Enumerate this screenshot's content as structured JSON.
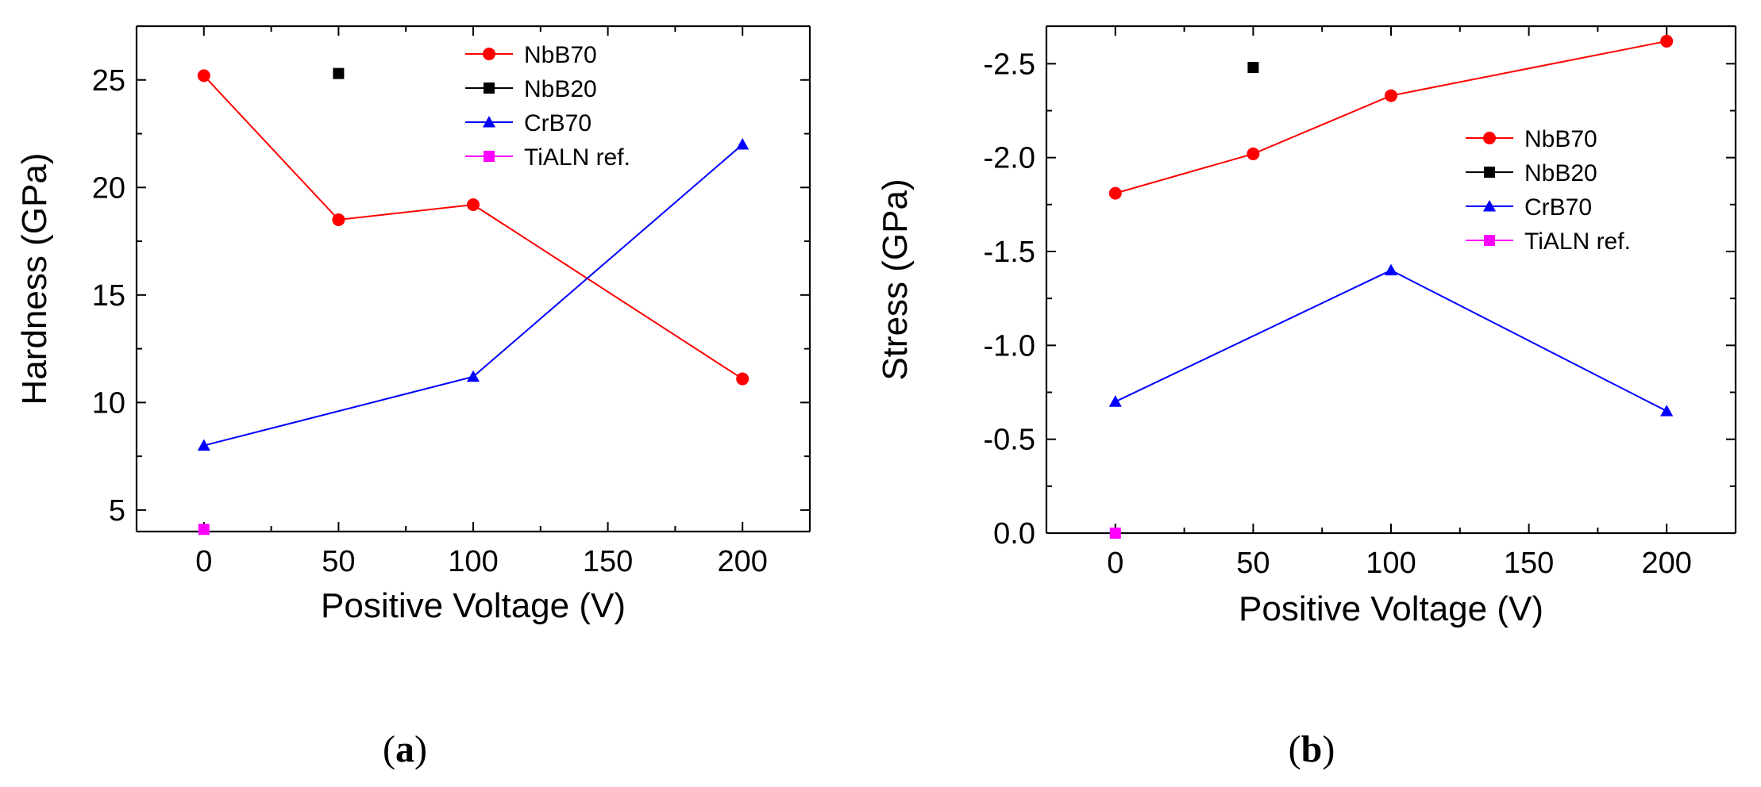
{
  "figure": {
    "panels": [
      "(a)",
      "(b)"
    ]
  },
  "chart_data": [
    {
      "type": "line",
      "panel_label": "(a)",
      "panel_letter": "a",
      "xlabel": "Positive Voltage (V)",
      "ylabel": "Hardness (GPa)",
      "xlim": [
        -25,
        225
      ],
      "ylim": [
        4,
        27.5
      ],
      "xticks": [
        0,
        50,
        100,
        150,
        200
      ],
      "yticks": [
        5,
        10,
        15,
        20,
        25
      ],
      "ytick_labels": [
        "5",
        "10",
        "15",
        "20",
        "25"
      ],
      "legend_position": "top-right",
      "series": [
        {
          "name": "NbB70",
          "color": "#ff0000",
          "marker": "circle",
          "line": true,
          "points": [
            [
              0,
              25.2
            ],
            [
              50,
              18.5
            ],
            [
              100,
              19.2
            ],
            [
              200,
              11.1
            ]
          ]
        },
        {
          "name": "NbB20",
          "color": "#000000",
          "marker": "square",
          "line": true,
          "points": [
            [
              50,
              25.3
            ]
          ]
        },
        {
          "name": "CrB70",
          "color": "#0000ff",
          "marker": "triangle",
          "line": true,
          "points": [
            [
              0,
              8.0
            ],
            [
              100,
              11.2
            ],
            [
              200,
              22.0
            ]
          ]
        },
        {
          "name": "TiALN ref.",
          "color": "#ff00ff",
          "marker": "square",
          "line": true,
          "points": [
            [
              0,
              4.1
            ]
          ]
        }
      ]
    },
    {
      "type": "line",
      "panel_label": "(b)",
      "panel_letter": "b",
      "xlabel": "Positive Voltage (V)",
      "ylabel": "Stress (GPa)",
      "xlim": [
        -25,
        225
      ],
      "ylim": [
        0,
        -2.7
      ],
      "xticks": [
        0,
        50,
        100,
        150,
        200
      ],
      "yticks": [
        0,
        -0.5,
        -1.0,
        -1.5,
        -2.0,
        -2.5
      ],
      "ytick_labels": [
        "0.0",
        "-0.5",
        "-1.0",
        "-1.5",
        "-2.0",
        "-2.5"
      ],
      "legend_position": "right",
      "series": [
        {
          "name": "NbB70",
          "color": "#ff0000",
          "marker": "circle",
          "line": true,
          "points": [
            [
              0,
              -1.81
            ],
            [
              50,
              -2.02
            ],
            [
              100,
              -2.33
            ],
            [
              200,
              -2.62
            ]
          ]
        },
        {
          "name": "NbB20",
          "color": "#000000",
          "marker": "square",
          "line": true,
          "points": [
            [
              50,
              -2.48
            ]
          ]
        },
        {
          "name": "CrB70",
          "color": "#0000ff",
          "marker": "triangle",
          "line": true,
          "points": [
            [
              0,
              -0.7
            ],
            [
              100,
              -1.4
            ],
            [
              200,
              -0.65
            ]
          ]
        },
        {
          "name": "TiALN ref.",
          "color": "#ff00ff",
          "marker": "square",
          "line": true,
          "points": [
            [
              0,
              0.0
            ]
          ]
        }
      ]
    }
  ]
}
